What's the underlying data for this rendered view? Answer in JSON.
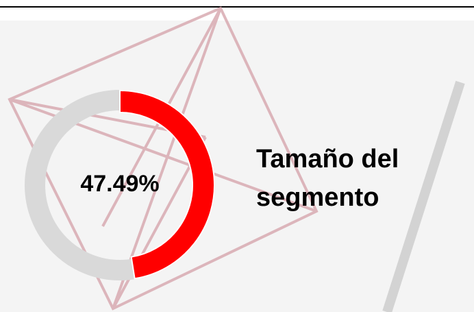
{
  "chart_data": {
    "type": "donut",
    "title": "Tamaño del segmento",
    "values": [
      47.49
    ],
    "value_labels": [
      "47.49%"
    ],
    "range": [
      0,
      100
    ],
    "color": "#ff0000",
    "track_color": "#d9d9d9"
  }
}
